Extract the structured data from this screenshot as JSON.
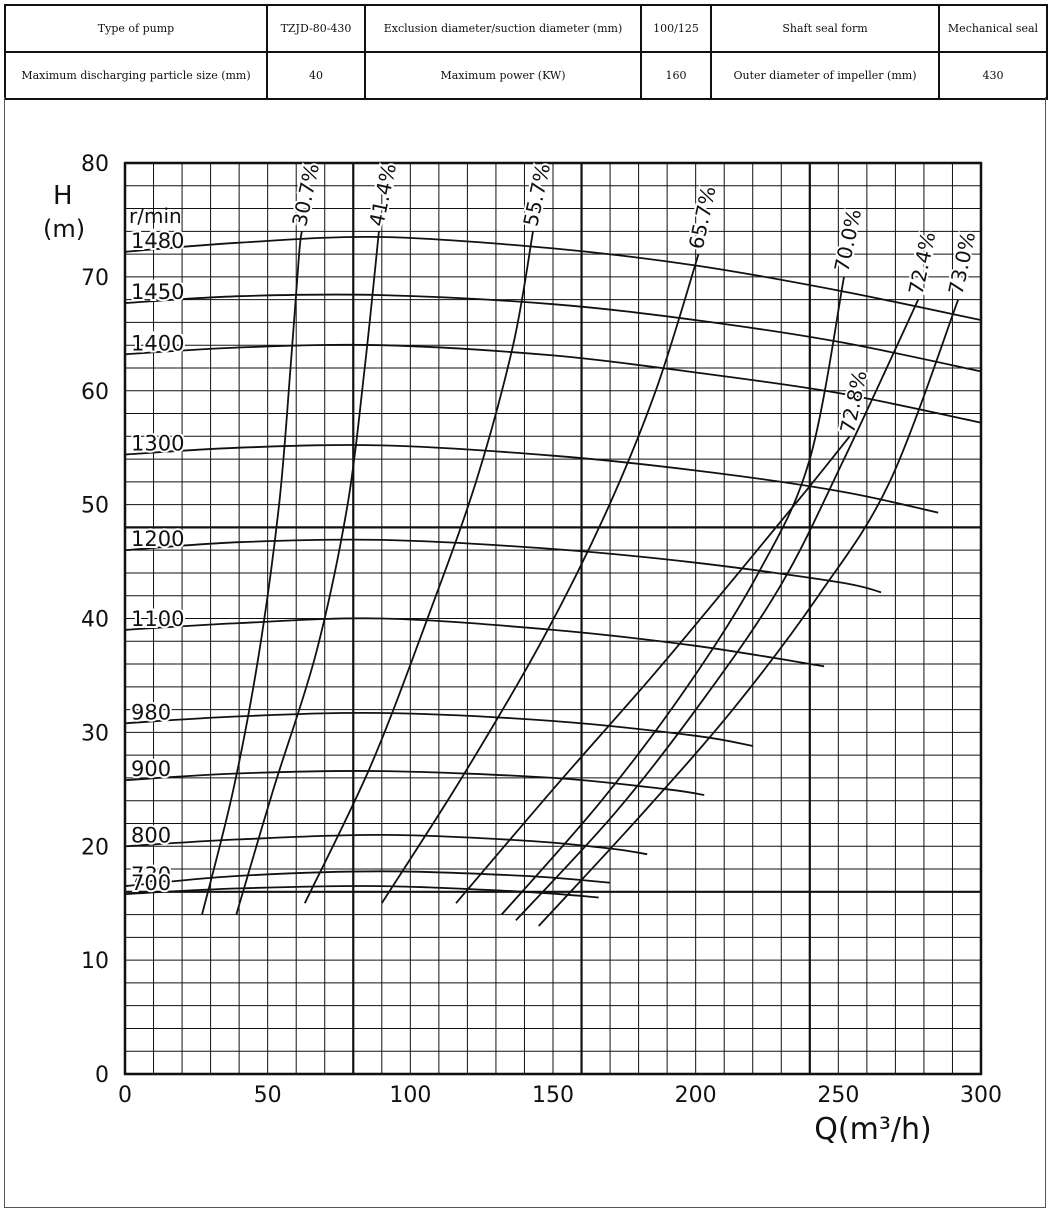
{
  "specs": {
    "row1": [
      "Type of pump",
      "TZJD-80-430",
      "Exclusion diameter/suction diameter (mm)",
      "100/125",
      "Shaft seal form",
      "Mechanical seal"
    ],
    "row2": [
      "Maximum discharging particle size (mm)",
      "40",
      "Maximum power (KW)",
      "160",
      "Outer diameter of impeller (mm)",
      "430"
    ]
  },
  "chart_data": {
    "type": "line",
    "ylabel": "H",
    "ylabel_unit": "(m)",
    "xlabel": "Q(m³/h)",
    "speed_unit": "r/min",
    "xlim": [
      0,
      300
    ],
    "ylim": [
      0,
      80
    ],
    "x_ticks": [
      "0",
      "50",
      "100",
      "150",
      "200",
      "250",
      "300"
    ],
    "y_ticks": [
      "0",
      "10",
      "20",
      "30",
      "40",
      "50",
      "60",
      "70",
      "80"
    ],
    "grid": true,
    "speed_curves": [
      {
        "name": "1480",
        "points": [
          [
            0,
            72.2
          ],
          [
            40,
            73
          ],
          [
            90,
            73.5
          ],
          [
            150,
            72.5
          ],
          [
            200,
            71
          ],
          [
            250,
            68.8
          ],
          [
            300,
            66.2
          ]
        ]
      },
      {
        "name": "1450",
        "points": [
          [
            0,
            67.7
          ],
          [
            40,
            68.3
          ],
          [
            90,
            68.4
          ],
          [
            150,
            67.6
          ],
          [
            200,
            66.2
          ],
          [
            250,
            64.3
          ],
          [
            300,
            61.7
          ]
        ]
      },
      {
        "name": "1400",
        "points": [
          [
            0,
            63.2
          ],
          [
            40,
            63.8
          ],
          [
            90,
            64
          ],
          [
            150,
            63.1
          ],
          [
            200,
            61.6
          ],
          [
            250,
            59.8
          ],
          [
            300,
            57.2
          ]
        ]
      },
      {
        "name": "1300",
        "points": [
          [
            0,
            54.4
          ],
          [
            40,
            55
          ],
          [
            90,
            55.2
          ],
          [
            150,
            54.3
          ],
          [
            200,
            53
          ],
          [
            250,
            51.2
          ],
          [
            285,
            49.3
          ]
        ]
      },
      {
        "name": "1200",
        "points": [
          [
            0,
            46
          ],
          [
            40,
            46.7
          ],
          [
            90,
            46.9
          ],
          [
            150,
            46.1
          ],
          [
            200,
            44.9
          ],
          [
            250,
            43.2
          ],
          [
            265,
            42.3
          ]
        ]
      },
      {
        "name": "1100",
        "points": [
          [
            0,
            39
          ],
          [
            40,
            39.6
          ],
          [
            90,
            40
          ],
          [
            150,
            39
          ],
          [
            200,
            37.6
          ],
          [
            245,
            35.8
          ]
        ]
      },
      {
        "name": "980",
        "points": [
          [
            0,
            30.8
          ],
          [
            40,
            31.4
          ],
          [
            90,
            31.7
          ],
          [
            150,
            31
          ],
          [
            200,
            29.7
          ],
          [
            220,
            28.8
          ]
        ]
      },
      {
        "name": "900",
        "points": [
          [
            0,
            25.8
          ],
          [
            40,
            26.4
          ],
          [
            90,
            26.6
          ],
          [
            150,
            26
          ],
          [
            190,
            25
          ],
          [
            203,
            24.5
          ]
        ]
      },
      {
        "name": "800",
        "points": [
          [
            0,
            20
          ],
          [
            40,
            20.6
          ],
          [
            90,
            21
          ],
          [
            140,
            20.5
          ],
          [
            170,
            19.8
          ],
          [
            183,
            19.3
          ]
        ]
      },
      {
        "name": "730",
        "points": [
          [
            0,
            16.5
          ],
          [
            40,
            17.4
          ],
          [
            90,
            17.8
          ],
          [
            140,
            17.4
          ],
          [
            170,
            16.8
          ]
        ]
      },
      {
        "name": "700",
        "points": [
          [
            0,
            15.8
          ],
          [
            40,
            16.3
          ],
          [
            90,
            16.5
          ],
          [
            140,
            16
          ],
          [
            166,
            15.5
          ]
        ]
      }
    ],
    "efficiency_curves": [
      {
        "name": "30.7%",
        "points": [
          [
            27,
            14
          ],
          [
            38,
            25
          ],
          [
            47,
            37
          ],
          [
            54,
            50
          ],
          [
            58,
            62
          ],
          [
            61,
            72
          ],
          [
            62,
            74
          ]
        ]
      },
      {
        "name": "41.4%",
        "points": [
          [
            39,
            14
          ],
          [
            52,
            25
          ],
          [
            67,
            37
          ],
          [
            78,
            50
          ],
          [
            84,
            62
          ],
          [
            89,
            74
          ]
        ]
      },
      {
        "name": "55.7%",
        "points": [
          [
            63,
            15
          ],
          [
            86,
            27
          ],
          [
            106,
            40
          ],
          [
            123,
            52
          ],
          [
            136,
            64
          ],
          [
            143,
            74
          ]
        ]
      },
      {
        "name": "65.7%",
        "points": [
          [
            90,
            15
          ],
          [
            118,
            26
          ],
          [
            146,
            38
          ],
          [
            168,
            49
          ],
          [
            186,
            60
          ],
          [
            201,
            72
          ]
        ]
      },
      {
        "name": "72.8%",
        "points": [
          [
            116,
            15
          ],
          [
            150,
            25
          ],
          [
            185,
            35
          ],
          [
            215,
            44
          ],
          [
            238,
            51
          ],
          [
            254,
            56
          ]
        ]
      },
      {
        "name": "70.0%",
        "points": [
          [
            132,
            14
          ],
          [
            167,
            24
          ],
          [
            197,
            34
          ],
          [
            222,
            44
          ],
          [
            240,
            54
          ],
          [
            252,
            70
          ]
        ]
      },
      {
        "name": "72.4%",
        "points": [
          [
            137,
            13.5
          ],
          [
            172,
            23
          ],
          [
            203,
            33
          ],
          [
            230,
            43
          ],
          [
            252,
            54
          ],
          [
            278,
            68
          ]
        ]
      },
      {
        "name": "73.0%",
        "points": [
          [
            145,
            13
          ],
          [
            180,
            22.5
          ],
          [
            213,
            32
          ],
          [
            243,
            42
          ],
          [
            268,
            52
          ],
          [
            292,
            68
          ]
        ]
      }
    ],
    "efficiency_label_positions": [
      "top",
      "top",
      "top",
      "top",
      "right",
      "top",
      "top",
      "top"
    ]
  }
}
